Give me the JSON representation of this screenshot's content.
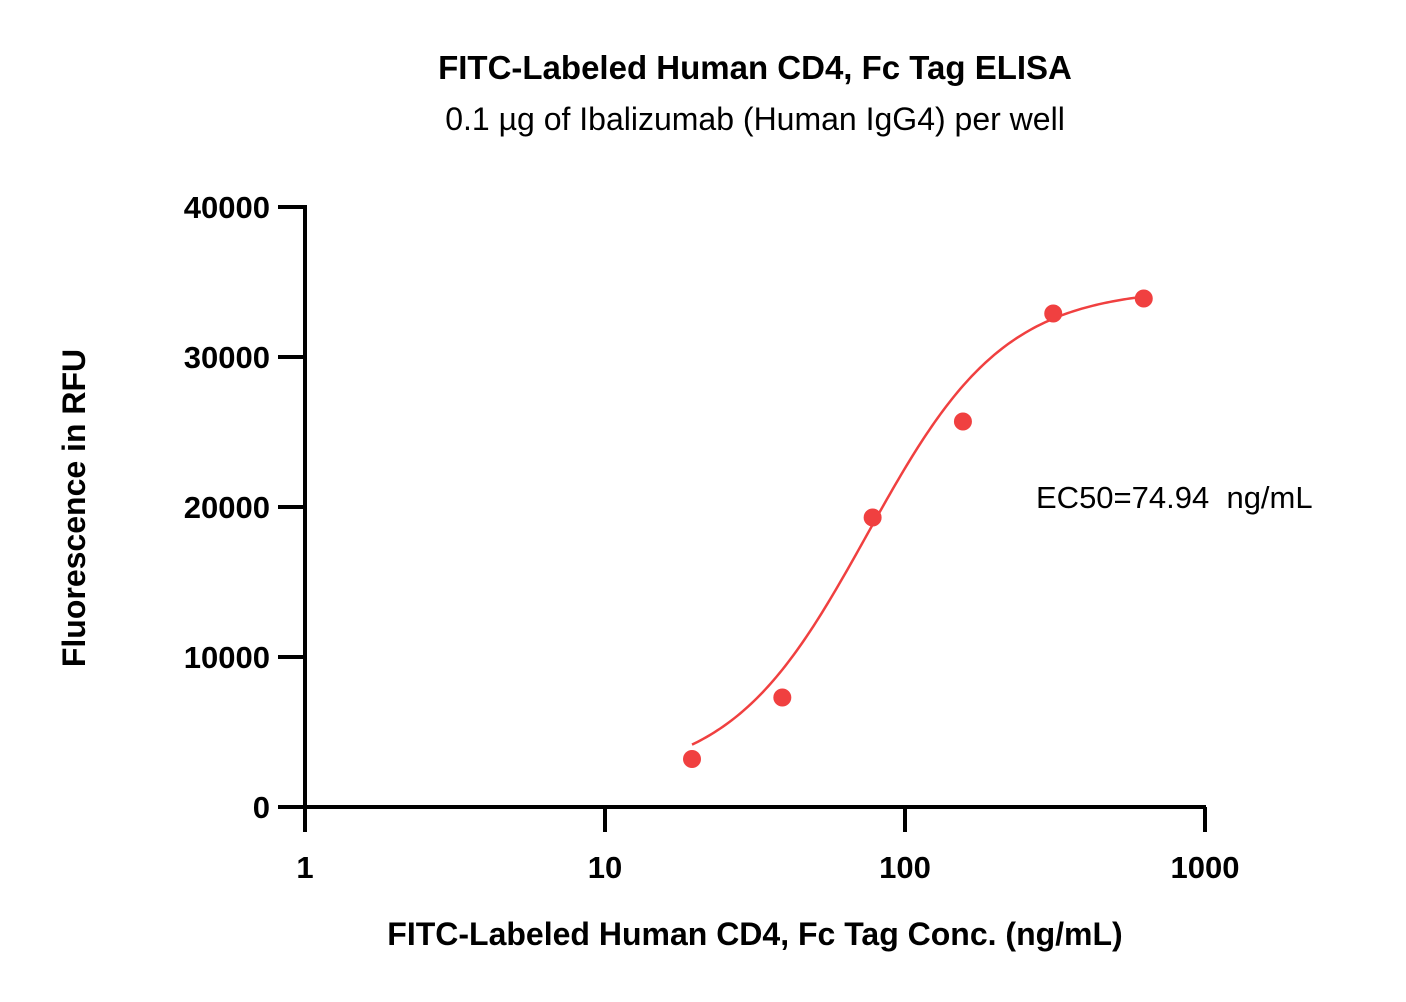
{
  "chart_data": {
    "type": "scatter",
    "title": "FITC-Labeled Human CD4, Fc Tag ELISA",
    "subtitle": "0.1 µg of Ibalizumab (Human IgG4) per well",
    "xlabel": "FITC-Labeled Human CD4, Fc Tag Conc. (ng/mL)",
    "ylabel": "Fluorescence in RFU",
    "x_scale": "log",
    "xlim": [
      1,
      1000
    ],
    "ylim": [
      0,
      40000
    ],
    "x_ticks": [
      1,
      10,
      100,
      1000
    ],
    "x_tick_labels": [
      "1",
      "10",
      "100",
      "1000"
    ],
    "y_ticks": [
      0,
      10000,
      20000,
      30000,
      40000
    ],
    "y_tick_labels": [
      "0",
      "10000",
      "20000",
      "30000",
      "40000"
    ],
    "grid": false,
    "series": [
      {
        "color": "#f04040",
        "x": [
          19.5,
          39,
          78,
          156,
          312,
          625
        ],
        "y": [
          3200,
          7300,
          19300,
          25700,
          32900,
          33900
        ]
      }
    ],
    "fit_curve": {
      "model": "4PL",
      "bottom": 1800,
      "top": 34600,
      "ec50": 74.94,
      "hill": 1.9,
      "x_range": [
        19.5,
        625
      ],
      "color": "#f04040"
    },
    "annotations": [
      {
        "text": "EC50=74.94  ng/mL"
      }
    ]
  }
}
